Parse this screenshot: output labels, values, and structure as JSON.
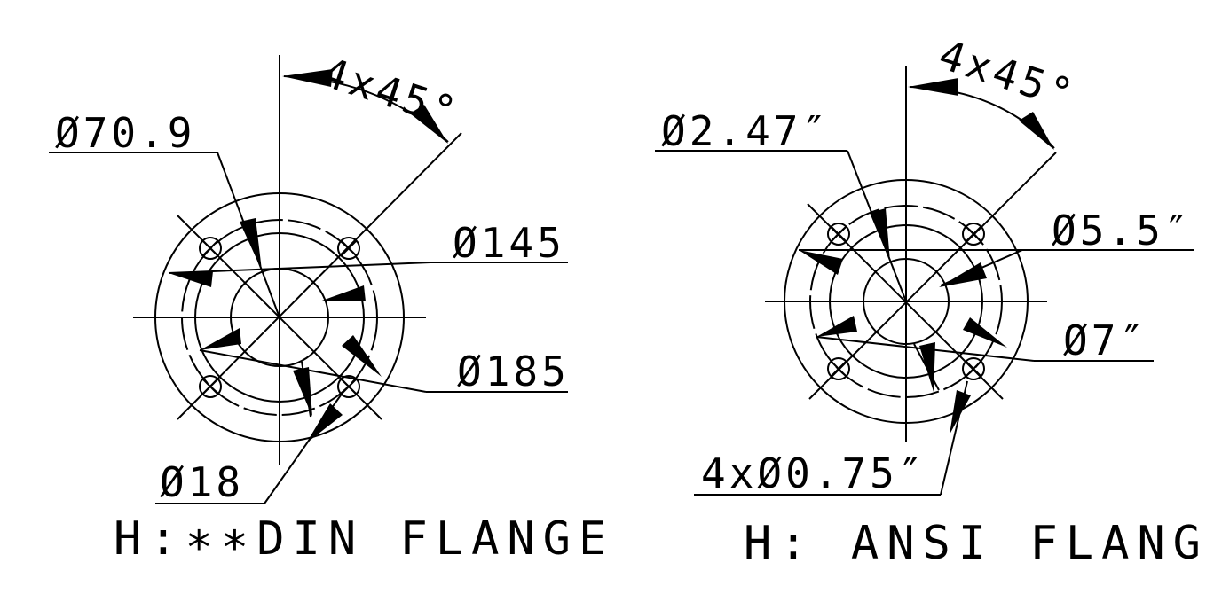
{
  "din": {
    "caption": "H:∗∗DIN FLANGE",
    "angle_label": "4x45°",
    "dims": {
      "inner": "Ø70.9",
      "bolt_circle": "Ø145",
      "outer": "Ø185",
      "hole": "Ø18"
    }
  },
  "ansi": {
    "caption": "H: ANSI FLANGE",
    "angle_label": "4x45°",
    "dims": {
      "inner": "Ø2.47″",
      "bolt_circle": "Ø5.5″",
      "outer": "Ø7″",
      "hole": "4xØ0.75″"
    }
  }
}
